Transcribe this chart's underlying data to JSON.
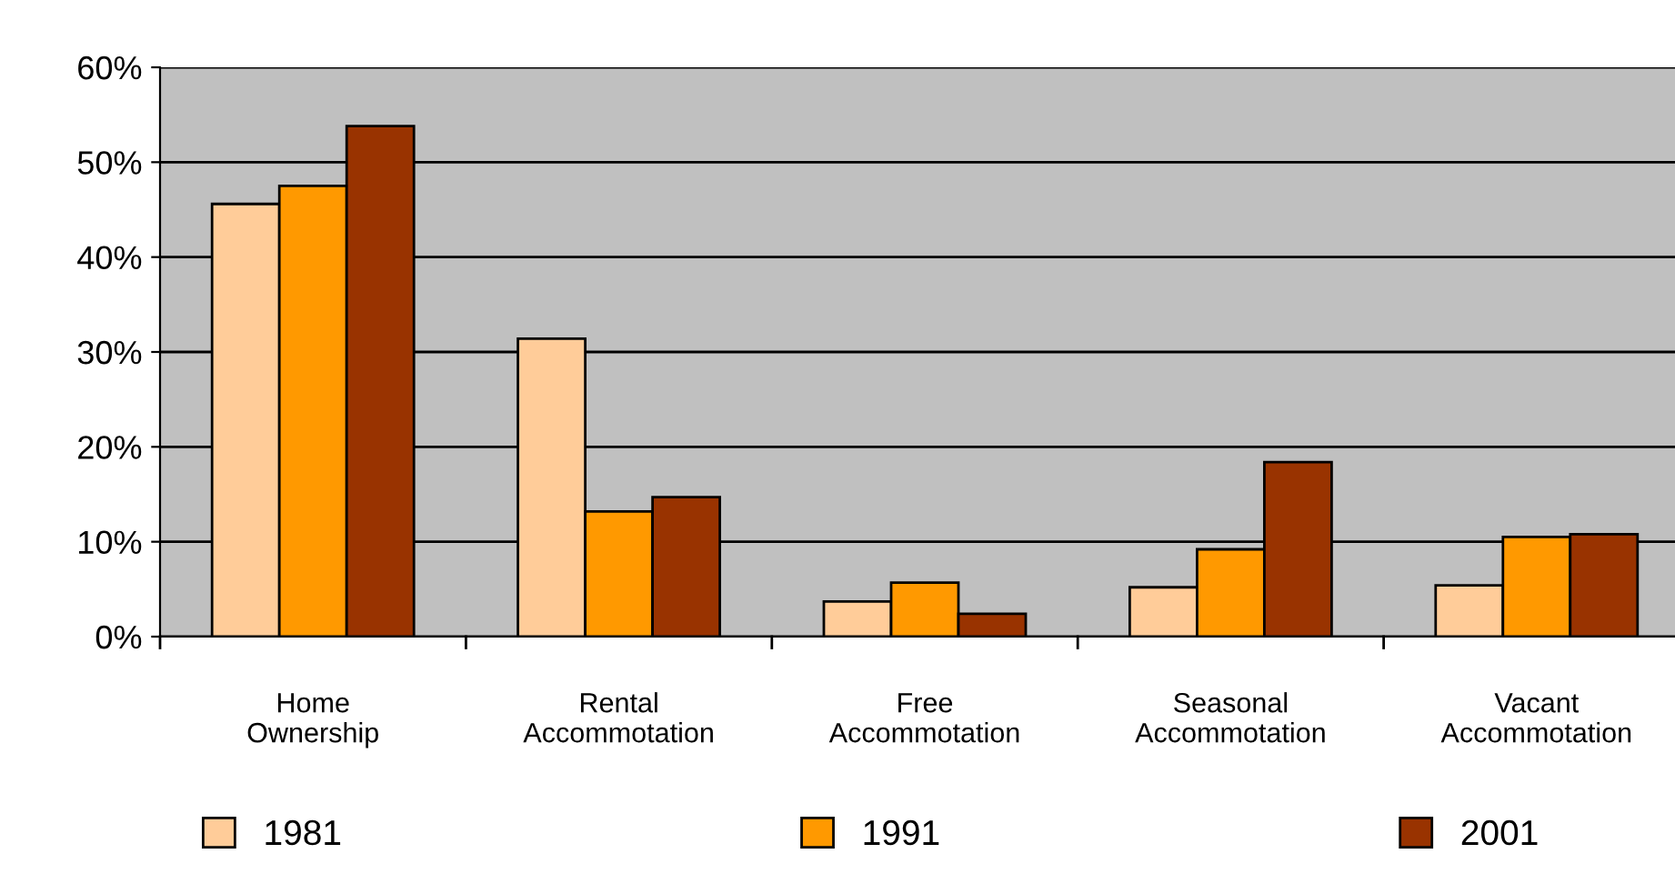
{
  "chart_data": {
    "type": "bar",
    "categories": [
      "Home\nOwnership",
      "Rental\nAccommotation",
      "Free\nAccommotation",
      "Seasonal\nAccommotation",
      "Vacant\nAccommotation"
    ],
    "series": [
      {
        "name": "1981",
        "color": "#ffcc99",
        "values": [
          45.6,
          31.4,
          3.7,
          5.2,
          5.4
        ]
      },
      {
        "name": "1991",
        "color": "#ff9900",
        "values": [
          47.5,
          13.2,
          5.7,
          9.2,
          10.5
        ]
      },
      {
        "name": "2001",
        "color": "#993300",
        "values": [
          53.8,
          14.7,
          2.4,
          18.4,
          10.8
        ]
      }
    ],
    "ylim": [
      0,
      60
    ],
    "yticks": [
      {
        "value": 0,
        "label": "0%"
      },
      {
        "value": 10,
        "label": "10%"
      },
      {
        "value": 20,
        "label": "20%"
      },
      {
        "value": 30,
        "label": "30%"
      },
      {
        "value": 40,
        "label": "40%"
      },
      {
        "value": 50,
        "label": "50%"
      },
      {
        "value": 60,
        "label": "60%"
      }
    ],
    "grid": "y",
    "legend": "bottom"
  }
}
